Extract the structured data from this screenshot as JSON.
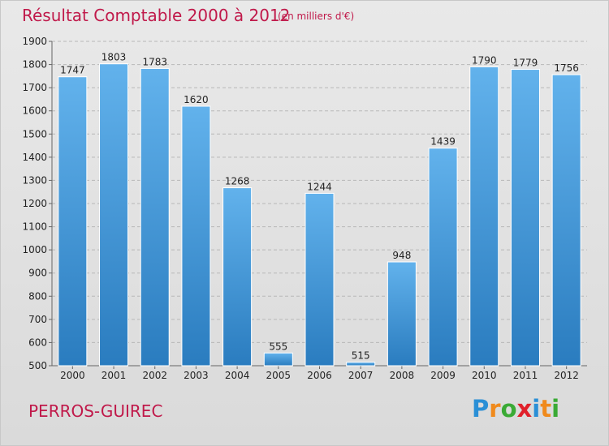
{
  "title": "Résultat Comptable 2000 à 2012",
  "subtitle": "(en milliers d'€)",
  "city": "PERROS-GUIREC",
  "logo": {
    "letters": [
      "P",
      "r",
      "o",
      "x",
      "i",
      "t",
      "i"
    ],
    "colors": [
      "#2a8fd6",
      "#f08a1c",
      "#3aaa35",
      "#e0202a",
      "#2a8fd6",
      "#f08a1c",
      "#3aaa35"
    ]
  },
  "colors": {
    "bar_light": "#62b2ec",
    "bar_dark": "#2a7cbf",
    "grid": "#b8b8b8",
    "title": "#c0194a"
  },
  "chart_data": {
    "type": "bar",
    "title": "Résultat Comptable 2000 à 2012",
    "subtitle": "(en milliers d'€)",
    "categories": [
      "2000",
      "2001",
      "2002",
      "2003",
      "2004",
      "2005",
      "2006",
      "2007",
      "2008",
      "2009",
      "2010",
      "2011",
      "2012"
    ],
    "values": [
      1747,
      1803,
      1783,
      1620,
      1268,
      555,
      1244,
      515,
      948,
      1439,
      1790,
      1779,
      1756
    ],
    "ylim": [
      500,
      1900
    ],
    "yticks": [
      500,
      600,
      700,
      800,
      900,
      1000,
      1100,
      1200,
      1300,
      1400,
      1500,
      1600,
      1700,
      1800,
      1900
    ],
    "grid": true,
    "data_labels": true
  }
}
